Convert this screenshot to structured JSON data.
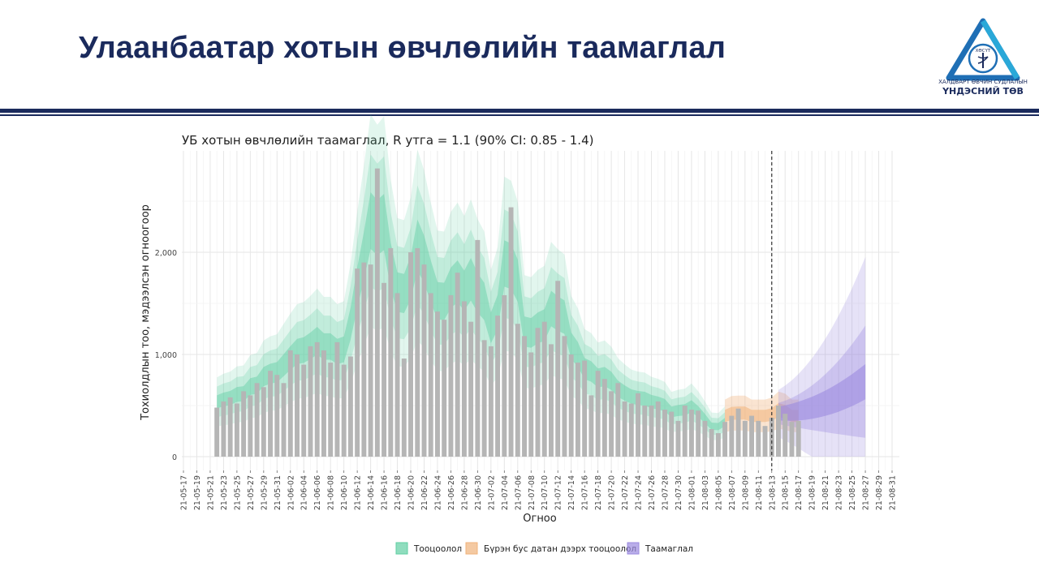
{
  "slide": {
    "title": "Улаанбаатар хотын өвчлөлийн таамаглал"
  },
  "logo": {
    "badge": "ХӨСҮТ",
    "line1": "ХАЛДВАРТ ӨВЧИН СУДЛАЛЫН",
    "line2": "ҮНДЭСНИЙ ТӨВ"
  },
  "colors": {
    "title": "#1a2a5c",
    "bars": "#b5b5b5",
    "estimate": "#5fcfa3",
    "partial": "#f0b27a",
    "forecast": "#9b8ae0"
  },
  "chart_data": {
    "type": "bar",
    "title": "УБ хотын өвчлөлийн таамаглал, R утга = 1.1 (90% CI: 0.85 - 1.4)",
    "xlabel": "Огноо",
    "ylabel": "Тохиолдлын тоо, мэдээлсэн огноогоор",
    "ylim": [
      0,
      2900
    ],
    "yticks": [
      0,
      1000,
      2000
    ],
    "ytick_labels": [
      "0",
      "1,000",
      "2,000"
    ],
    "x_start": "2021-05-17",
    "x_end": "2021-08-31",
    "xtick_labels": [
      "21-05-17",
      "21-05-19",
      "21-05-21",
      "21-05-23",
      "21-05-25",
      "21-05-27",
      "21-05-29",
      "21-05-31",
      "21-06-02",
      "21-06-04",
      "21-06-06",
      "21-06-08",
      "21-06-10",
      "21-06-12",
      "21-06-14",
      "21-06-16",
      "21-06-18",
      "21-06-20",
      "21-06-22",
      "21-06-24",
      "21-06-26",
      "21-06-28",
      "21-06-30",
      "21-07-02",
      "21-07-04",
      "21-07-06",
      "21-07-08",
      "21-07-10",
      "21-07-12",
      "21-07-14",
      "21-07-16",
      "21-07-18",
      "21-07-20",
      "21-07-22",
      "21-07-24",
      "21-07-26",
      "21-07-28",
      "21-07-30",
      "21-08-01",
      "21-08-03",
      "21-08-05",
      "21-08-07",
      "21-08-09",
      "21-08-11",
      "21-08-13",
      "21-08-15",
      "21-08-17",
      "21-08-19",
      "21-08-21",
      "21-08-23",
      "21-08-25",
      "21-08-27",
      "21-08-29",
      "21-08-31"
    ],
    "bars_start": "2021-05-22",
    "reported_cases": [
      480,
      540,
      580,
      520,
      640,
      600,
      720,
      680,
      840,
      800,
      720,
      1040,
      1000,
      900,
      1080,
      1120,
      1040,
      920,
      1120,
      900,
      980,
      1840,
      1900,
      1880,
      2820,
      1700,
      2040,
      1600,
      960,
      2000,
      2040,
      1880,
      1600,
      1420,
      1340,
      1580,
      1800,
      1520,
      1320,
      2120,
      1140,
      1080,
      1380,
      1580,
      2440,
      1300,
      1180,
      1020,
      1260,
      1320,
      1100,
      1720,
      1180,
      1000,
      920,
      940,
      600,
      840,
      760,
      640,
      720,
      540,
      520,
      620,
      500,
      500,
      540,
      460,
      440,
      350,
      500,
      460,
      450,
      350,
      270,
      230,
      340,
      400,
      470,
      350,
      400,
      350,
      300,
      380,
      500,
      420,
      340,
      350
    ],
    "series": [
      {
        "name": "Тооцоолол"
      },
      {
        "name": "Бүрэн бус датан дээрх тооцоолол"
      },
      {
        "name": "Таамаглал"
      }
    ],
    "vline_date": "2021-08-13",
    "legend_position": "bottom",
    "grid": true
  }
}
